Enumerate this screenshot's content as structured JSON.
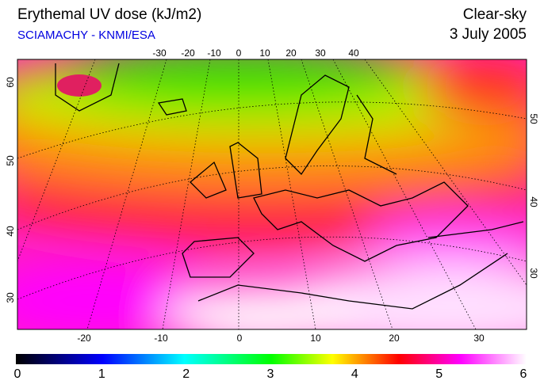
{
  "header": {
    "title": "Erythemal UV dose (kJ/m2)",
    "subtitle": "SCIAMACHY - KNMI/ESA",
    "sky": "Clear-sky",
    "date": "3 July 2005"
  },
  "map": {
    "top_lon_labels": [
      "-30",
      "-20",
      "-10",
      "0",
      "10",
      "20",
      "30",
      "40"
    ],
    "bottom_lon_labels": [
      "-20",
      "-10",
      "0",
      "10",
      "20",
      "30"
    ],
    "left_lat_labels": [
      "60",
      "50",
      "40",
      "30"
    ],
    "right_lat_labels": [
      "50",
      "40",
      "30"
    ]
  },
  "colorbar": {
    "ticks": [
      0,
      1,
      2,
      3,
      4,
      5,
      6
    ]
  }
}
